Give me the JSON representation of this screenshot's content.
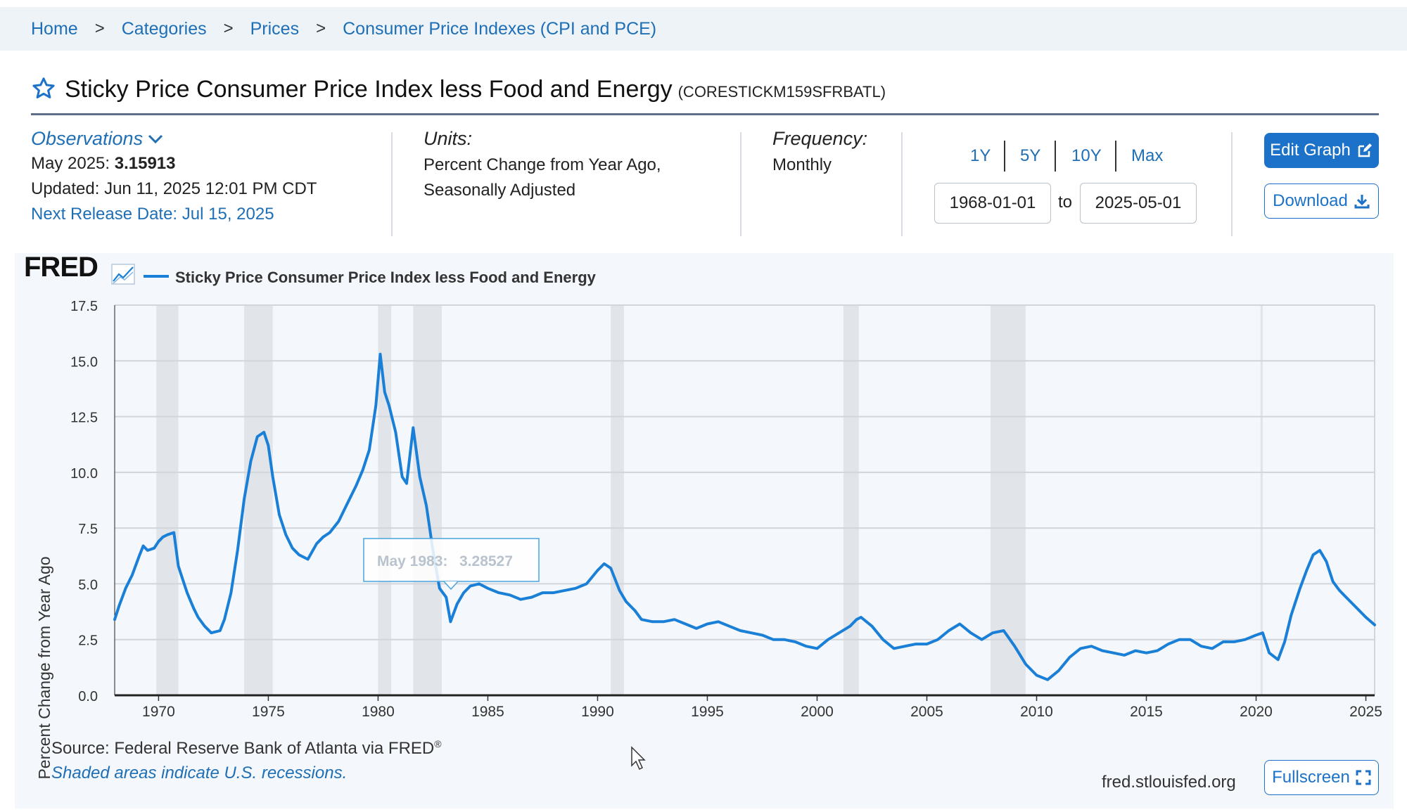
{
  "breadcrumb": [
    "Home",
    "Categories",
    "Prices",
    "Consumer Price Indexes (CPI and PCE)"
  ],
  "breadcrumb_separator": ">",
  "series": {
    "title": "Sticky Price Consumer Price Index less Food and Energy",
    "code": "(CORESTICKM159SFRBATL)"
  },
  "observations": {
    "label": "Observations",
    "latest_label": "May 2025:",
    "latest_value": "3.15913",
    "updated": "Updated: Jun 11, 2025 12:01 PM CDT",
    "next_release": "Next Release Date: Jul 15, 2025"
  },
  "units": {
    "label": "Units:",
    "line1": "Percent Change from Year Ago,",
    "line2": "Seasonally Adjusted"
  },
  "frequency": {
    "label": "Frequency:",
    "value": "Monthly"
  },
  "range": {
    "buttons": [
      "1Y",
      "5Y",
      "10Y",
      "Max"
    ],
    "start": "1968-01-01",
    "to": "to",
    "end": "2025-05-01"
  },
  "actions": {
    "edit": "Edit Graph",
    "download": "Download",
    "fullscreen": "Fullscreen"
  },
  "footer": {
    "source": "Source: Federal Reserve Bank of Atlanta via FRED",
    "registered": "®",
    "recessions": "Shaded areas indicate U.S. recessions.",
    "site": "fred.stlouisfed.org"
  },
  "colors": {
    "accent": "#1c72c8",
    "line": "#1a7fd6",
    "recession": "#e1e4e9"
  },
  "chart_data": {
    "type": "line",
    "logo": "FRED",
    "legend": "Sticky Price Consumer Price Index less Food and Energy",
    "ylabel": "Percent Change from Year Ago",
    "xlabel": "",
    "xlim": [
      1968.0,
      2025.4
    ],
    "ylim": [
      0,
      17.5
    ],
    "yticks": [
      "0.0",
      "2.5",
      "5.0",
      "7.5",
      "10.0",
      "12.5",
      "15.0",
      "17.5"
    ],
    "xticks": [
      "1970",
      "1975",
      "1980",
      "1985",
      "1990",
      "1995",
      "2000",
      "2005",
      "2010",
      "2015",
      "2020",
      "2025"
    ],
    "grid": true,
    "recessions": [
      [
        1969.9,
        1970.9
      ],
      [
        1973.9,
        1975.2
      ],
      [
        1980.0,
        1980.6
      ],
      [
        1981.6,
        1982.9
      ],
      [
        1990.6,
        1991.2
      ],
      [
        2001.2,
        2001.9
      ],
      [
        2007.9,
        2009.5
      ],
      [
        2020.2,
        2020.3
      ]
    ],
    "tooltip": {
      "label": "May 1983:",
      "value": "3.28527"
    },
    "series": [
      {
        "name": "Sticky Price Consumer Price Index less Food and Energy",
        "x": [
          1968.0,
          1968.2,
          1968.5,
          1968.8,
          1969.1,
          1969.3,
          1969.5,
          1969.8,
          1970.0,
          1970.2,
          1970.4,
          1970.7,
          1970.9,
          1971.1,
          1971.3,
          1971.6,
          1971.8,
          1972.1,
          1972.4,
          1972.8,
          1973.0,
          1973.3,
          1973.6,
          1973.9,
          1974.2,
          1974.5,
          1974.8,
          1975.0,
          1975.2,
          1975.5,
          1975.8,
          1976.1,
          1976.4,
          1976.8,
          1977.2,
          1977.5,
          1977.8,
          1978.2,
          1978.6,
          1979.0,
          1979.3,
          1979.6,
          1979.9,
          1980.1,
          1980.3,
          1980.5,
          1980.8,
          1981.1,
          1981.3,
          1981.6,
          1981.9,
          1982.2,
          1982.5,
          1982.8,
          1983.1,
          1983.3,
          1983.6,
          1983.9,
          1984.2,
          1984.6,
          1985.0,
          1985.5,
          1986.0,
          1986.5,
          1987.0,
          1987.5,
          1988.0,
          1988.5,
          1989.0,
          1989.5,
          1990.0,
          1990.3,
          1990.6,
          1991.0,
          1991.3,
          1991.7,
          1992.0,
          1992.5,
          1993.0,
          1993.5,
          1994.0,
          1994.5,
          1995.0,
          1995.5,
          1996.0,
          1996.5,
          1997.0,
          1997.5,
          1998.0,
          1998.5,
          1999.0,
          1999.5,
          2000.0,
          2000.5,
          2001.0,
          2001.5,
          2001.8,
          2002.0,
          2002.5,
          2003.0,
          2003.5,
          2004.0,
          2004.5,
          2005.0,
          2005.5,
          2006.0,
          2006.5,
          2007.0,
          2007.5,
          2008.0,
          2008.5,
          2009.0,
          2009.5,
          2010.0,
          2010.5,
          2011.0,
          2011.5,
          2012.0,
          2012.5,
          2013.0,
          2013.5,
          2014.0,
          2014.5,
          2015.0,
          2015.5,
          2016.0,
          2016.5,
          2017.0,
          2017.5,
          2018.0,
          2018.5,
          2019.0,
          2019.5,
          2020.0,
          2020.3,
          2020.6,
          2021.0,
          2021.3,
          2021.6,
          2022.0,
          2022.3,
          2022.6,
          2022.9,
          2023.2,
          2023.5,
          2023.8,
          2024.1,
          2024.4,
          2024.7,
          2025.0,
          2025.4
        ],
        "values": [
          3.4,
          4.0,
          4.8,
          5.4,
          6.2,
          6.7,
          6.5,
          6.6,
          6.9,
          7.1,
          7.2,
          7.3,
          5.8,
          5.2,
          4.6,
          3.9,
          3.5,
          3.1,
          2.8,
          2.9,
          3.4,
          4.6,
          6.5,
          8.8,
          10.5,
          11.6,
          11.8,
          11.2,
          9.8,
          8.1,
          7.2,
          6.6,
          6.3,
          6.1,
          6.8,
          7.1,
          7.3,
          7.8,
          8.6,
          9.4,
          10.1,
          11.0,
          13.0,
          15.3,
          13.6,
          13.0,
          11.8,
          9.8,
          9.5,
          12.0,
          9.8,
          8.5,
          6.5,
          4.8,
          4.4,
          3.3,
          4.1,
          4.6,
          4.9,
          5.0,
          4.8,
          4.6,
          4.5,
          4.3,
          4.4,
          4.6,
          4.6,
          4.7,
          4.8,
          5.0,
          5.6,
          5.9,
          5.7,
          4.7,
          4.2,
          3.8,
          3.4,
          3.3,
          3.3,
          3.4,
          3.2,
          3.0,
          3.2,
          3.3,
          3.1,
          2.9,
          2.8,
          2.7,
          2.5,
          2.5,
          2.4,
          2.2,
          2.1,
          2.5,
          2.8,
          3.1,
          3.4,
          3.5,
          3.1,
          2.5,
          2.1,
          2.2,
          2.3,
          2.3,
          2.5,
          2.9,
          3.2,
          2.8,
          2.5,
          2.8,
          2.9,
          2.2,
          1.4,
          0.9,
          0.7,
          1.1,
          1.7,
          2.1,
          2.2,
          2.0,
          1.9,
          1.8,
          2.0,
          1.9,
          2.0,
          2.3,
          2.5,
          2.5,
          2.2,
          2.1,
          2.4,
          2.4,
          2.5,
          2.7,
          2.8,
          1.9,
          1.6,
          2.4,
          3.6,
          4.8,
          5.6,
          6.3,
          6.5,
          6.0,
          5.1,
          4.7,
          4.4,
          4.1,
          3.8,
          3.5,
          3.16
        ]
      }
    ]
  }
}
